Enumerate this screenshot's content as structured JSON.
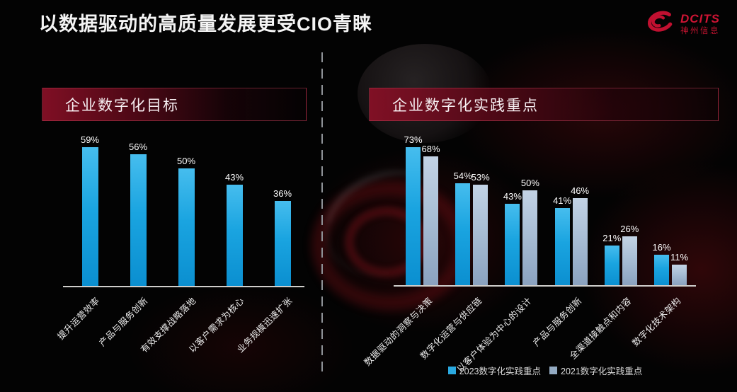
{
  "slide_title": "以数据驱动的高质量发展更受CIO青睐",
  "logo": {
    "brand": "DCITS",
    "company": "神州信息",
    "color": "#c8102e"
  },
  "panels": {
    "left": {
      "header": "企业数字化目标"
    },
    "right": {
      "header": "企业数字化实践重点"
    }
  },
  "legend": [
    {
      "label": "2023数字化实践重点",
      "color": "#2aa9e0"
    },
    {
      "label": "2021数字化实践重点",
      "color": "#93aac2"
    }
  ],
  "chart_data": [
    {
      "type": "bar",
      "title": "企业数字化目标",
      "categories": [
        "提升运营效率",
        "产品与服务创新",
        "有效支撑战略落地",
        "以客户需求为核心",
        "业务规模迅速扩张"
      ],
      "values": [
        59,
        56,
        50,
        43,
        36
      ],
      "unit": "%",
      "data_labels": [
        "59%",
        "56%",
        "50%",
        "43%",
        "36%"
      ],
      "ylim": [
        0,
        65
      ],
      "grid": false,
      "bar_color": "#1ea6e0",
      "legend_position": "none"
    },
    {
      "type": "bar",
      "title": "企业数字化实践重点",
      "categories": [
        "数据驱动的洞察与决策",
        "数字化运营与供应链",
        "以客户体验为中心的设计",
        "产品与服务创新",
        "全渠道接触点和内容",
        "数字化技术架构"
      ],
      "series": [
        {
          "name": "2023数字化实践重点",
          "values": [
            73,
            54,
            43,
            41,
            21,
            16
          ],
          "color": "#1ea6e0"
        },
        {
          "name": "2021数字化实践重点",
          "values": [
            68,
            53,
            50,
            46,
            26,
            11
          ],
          "color": "#93aac2"
        }
      ],
      "unit": "%",
      "data_labels": [
        [
          "73%",
          "54%",
          "43%",
          "41%",
          "21%",
          "16%"
        ],
        [
          "68%",
          "53%",
          "50%",
          "46%",
          "26%",
          "11%"
        ]
      ],
      "ylim": [
        0,
        80
      ],
      "grid": false,
      "legend_position": "bottom"
    }
  ]
}
